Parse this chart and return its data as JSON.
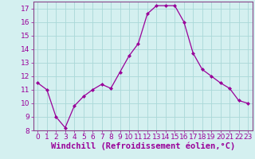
{
  "x": [
    0,
    1,
    2,
    3,
    4,
    5,
    6,
    7,
    8,
    9,
    10,
    11,
    12,
    13,
    14,
    15,
    16,
    17,
    18,
    19,
    20,
    21,
    22,
    23
  ],
  "y": [
    11.5,
    11.0,
    9.0,
    8.2,
    9.8,
    10.5,
    11.0,
    11.4,
    11.1,
    12.3,
    13.5,
    14.4,
    16.6,
    17.2,
    17.2,
    17.2,
    16.0,
    13.7,
    12.5,
    12.0,
    11.5,
    11.1,
    10.2,
    10.0
  ],
  "line_color": "#990099",
  "marker": "D",
  "marker_size": 2,
  "bg_color": "#d4f0f0",
  "grid_color": "#aad8d8",
  "xlabel": "Windchill (Refroidissement éolien,°C)",
  "xlabel_fontsize": 7.5,
  "ylim": [
    8,
    17.5
  ],
  "xlim": [
    -0.5,
    23.5
  ],
  "yticks": [
    8,
    9,
    10,
    11,
    12,
    13,
    14,
    15,
    16,
    17
  ],
  "xticks": [
    0,
    1,
    2,
    3,
    4,
    5,
    6,
    7,
    8,
    9,
    10,
    11,
    12,
    13,
    14,
    15,
    16,
    17,
    18,
    19,
    20,
    21,
    22,
    23
  ],
  "tick_fontsize": 6.5,
  "spine_color": "#884488"
}
